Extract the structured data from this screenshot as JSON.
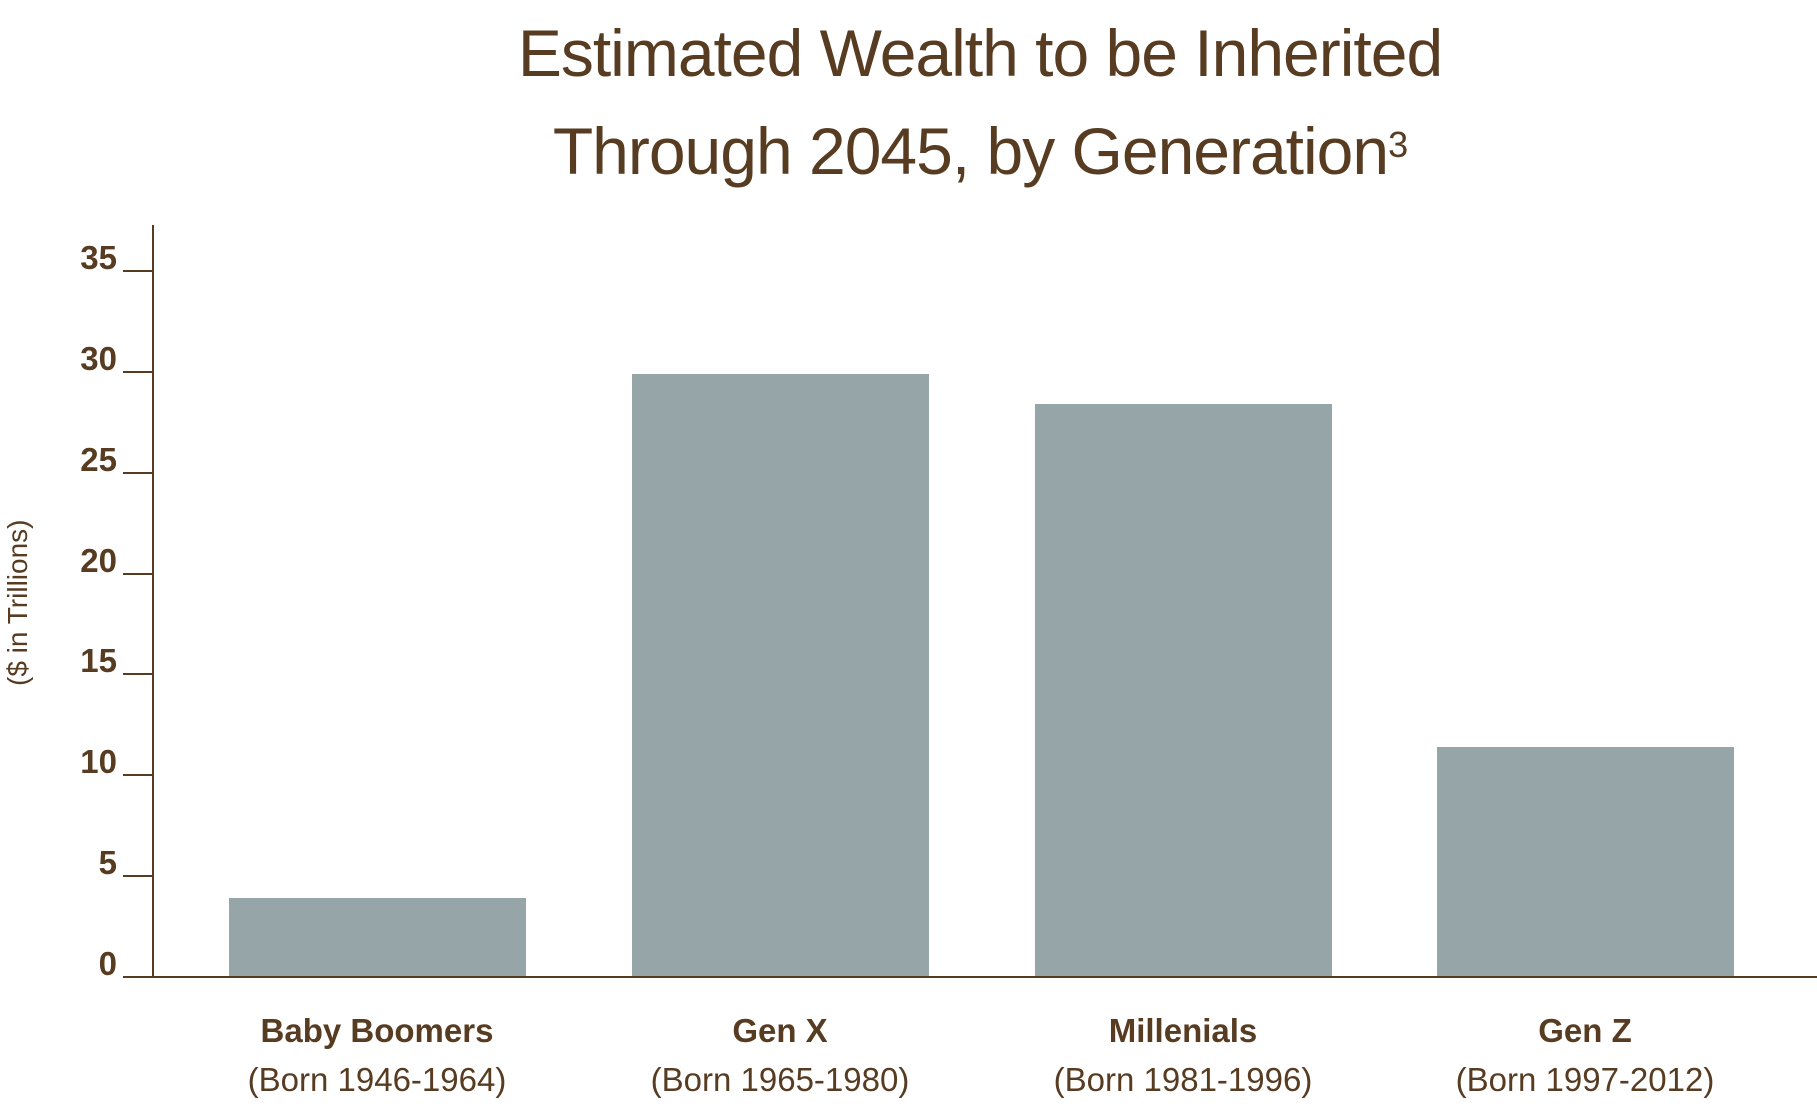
{
  "title": {
    "line1": "Estimated Wealth to be Inherited",
    "line2": "Through 2045, by Generation",
    "footnote_mark": "3"
  },
  "colors": {
    "text": "#573c22",
    "bar": "#95a5a8",
    "axis": "#573c22"
  },
  "axis": {
    "ylabel": "($ in Trillions)",
    "ticks": [
      "0",
      "5",
      "10",
      "15",
      "20",
      "25",
      "30",
      "35"
    ]
  },
  "categories": [
    {
      "name": "Baby Boomers",
      "sub": "(Born 1946-1964)"
    },
    {
      "name": "Gen X",
      "sub": "(Born 1965-1980)"
    },
    {
      "name": "Millenials",
      "sub": "(Born 1981-1996)"
    },
    {
      "name": "Gen Z",
      "sub": "(Born 1997-2012)"
    }
  ],
  "chart_data": {
    "type": "bar",
    "title": "Estimated Wealth to be Inherited Through 2045, by Generation³",
    "categories": [
      "Baby Boomers (Born 1946-1964)",
      "Gen X (Born 1965-1980)",
      "Millenials (Born 1981-1996)",
      "Gen Z (Born 1997-2012)"
    ],
    "values": [
      3.9,
      29.9,
      28.4,
      11.4
    ],
    "xlabel": "",
    "ylabel": "($ in Trillions)",
    "ylim": [
      0,
      35
    ],
    "yticks": [
      0,
      5,
      10,
      15,
      20,
      25,
      30,
      35
    ],
    "grid": false,
    "legend": null
  }
}
